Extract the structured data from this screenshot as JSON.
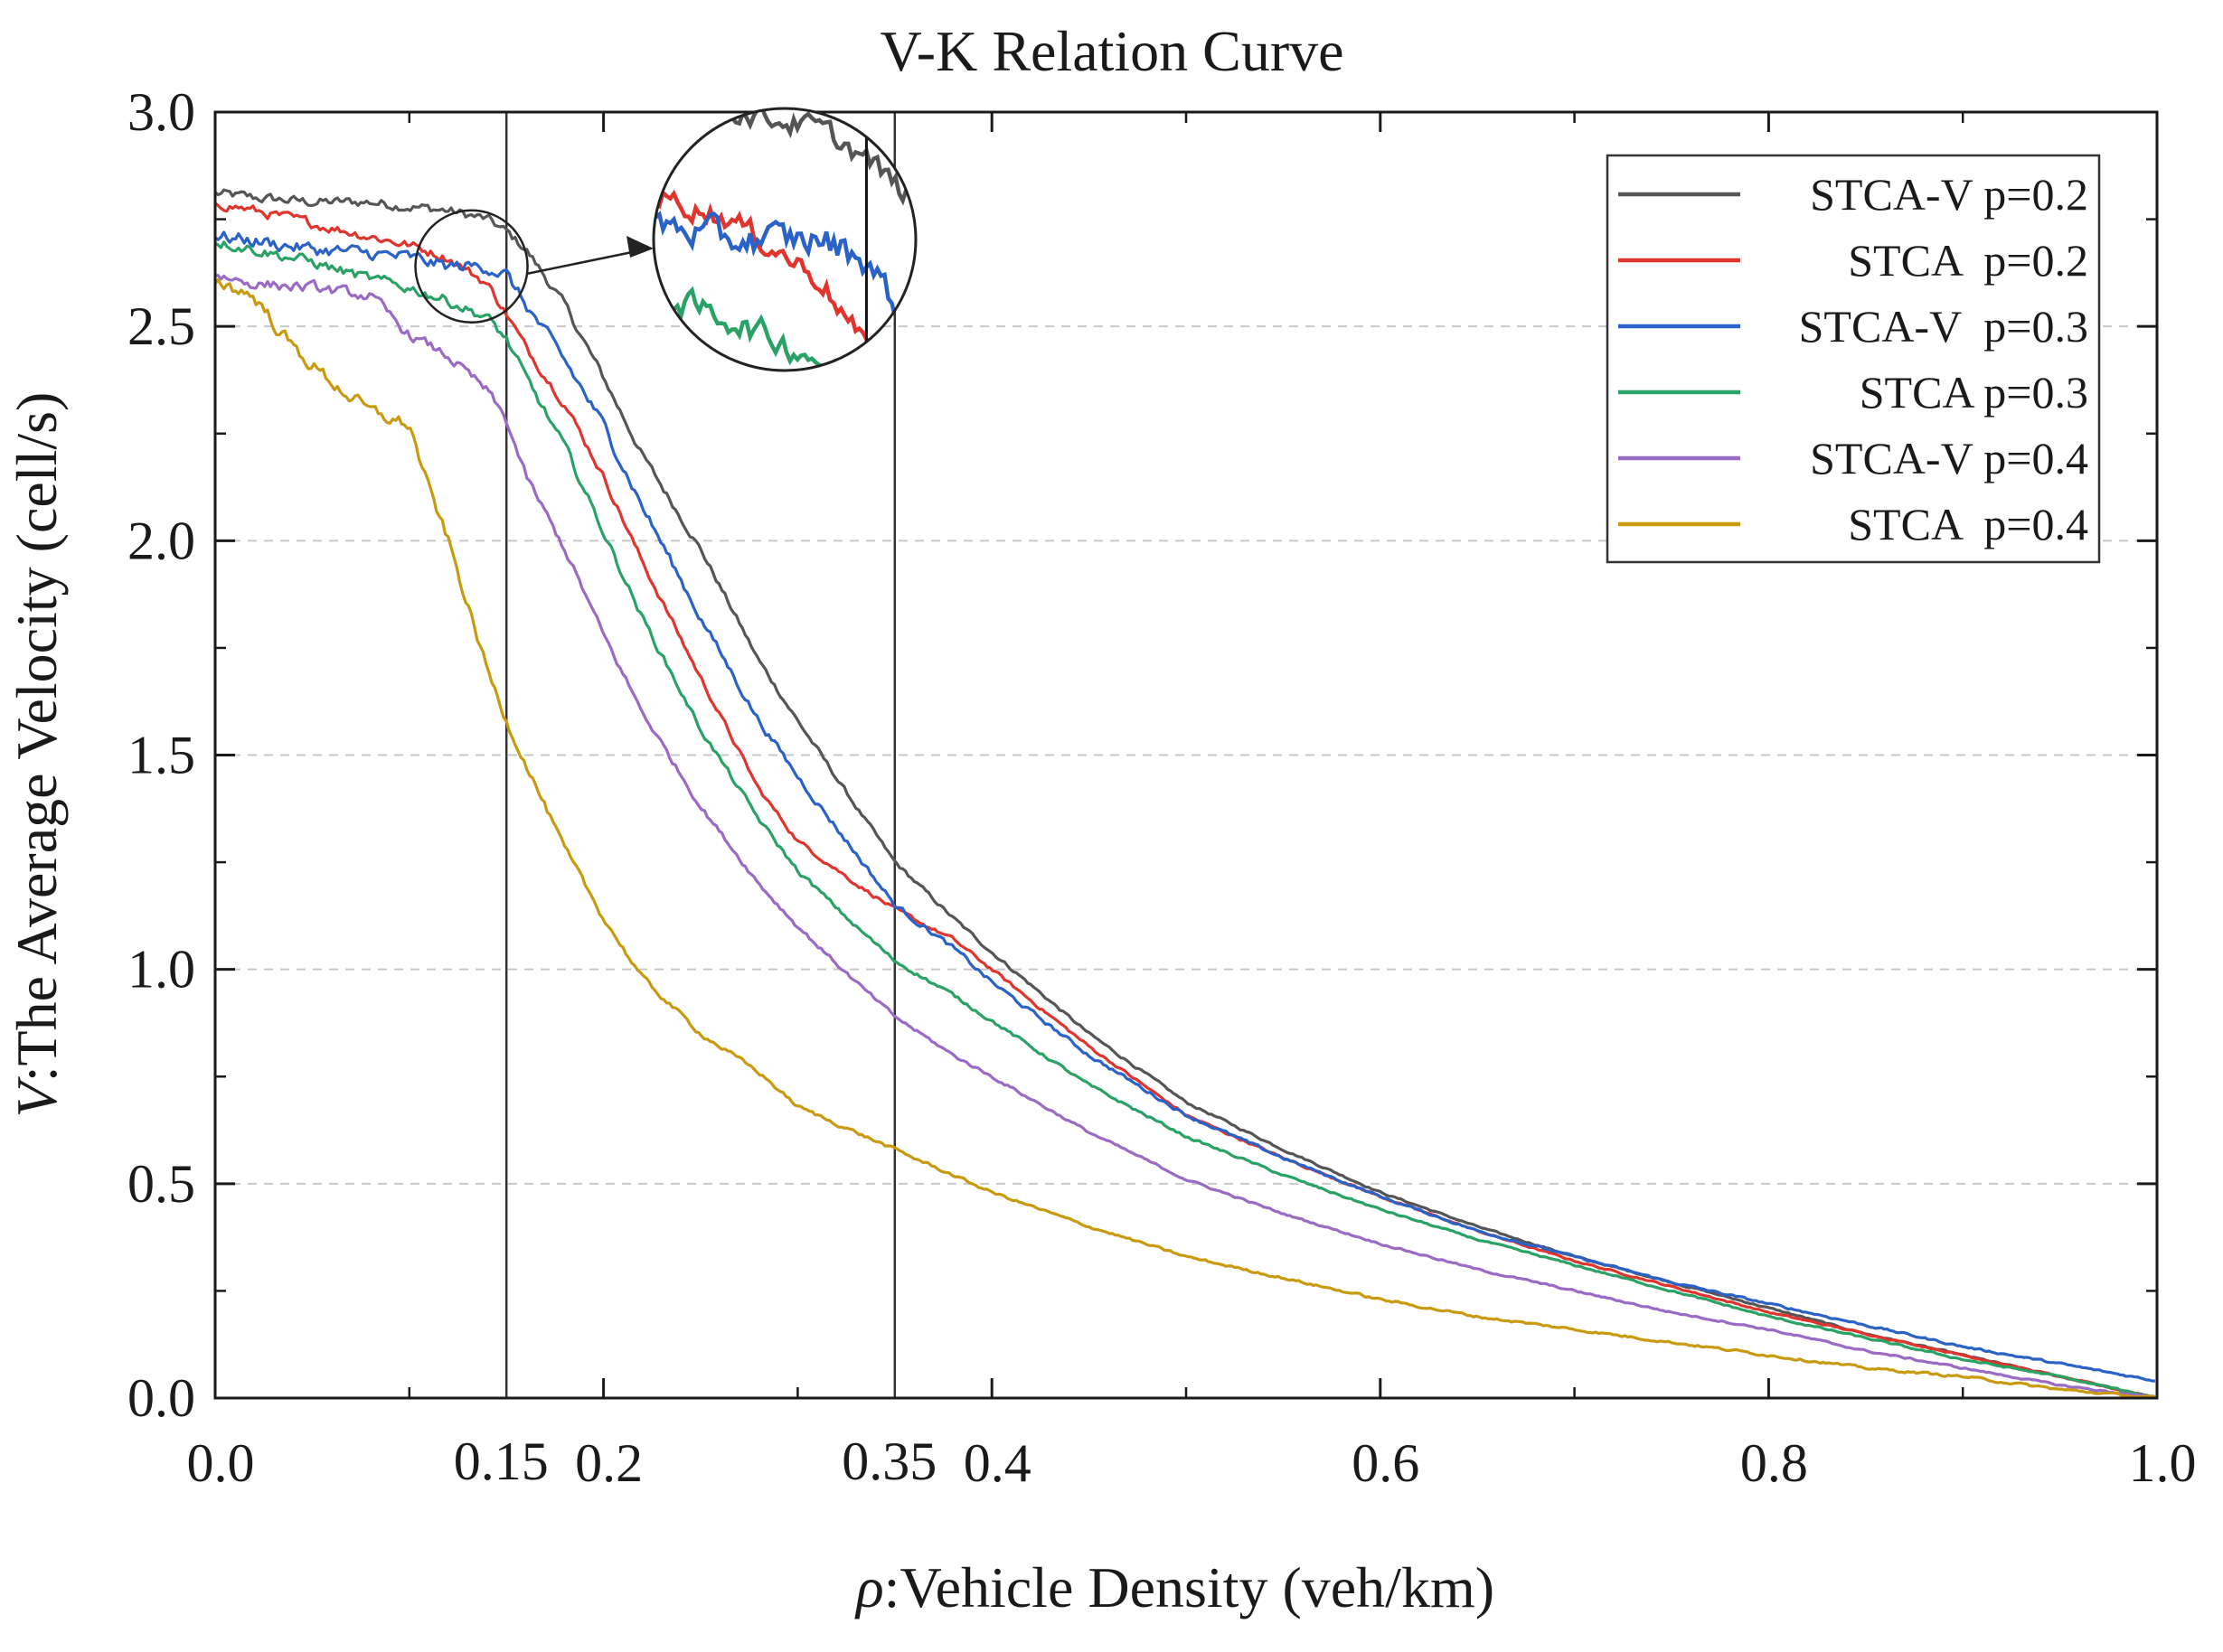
{
  "chart_data": {
    "type": "line",
    "title": "V-K Relation Curve",
    "xlabel_symbol": "ρ",
    "xlabel": ":Vehicle Density (veh/km)",
    "ylabel_symbol": "V",
    "ylabel": ":The Average Velocity (cell/s)",
    "xlim": [
      0.0,
      1.0
    ],
    "ylim": [
      0.0,
      3.0
    ],
    "x_ticks": [
      {
        "value": 0.0,
        "label": "0.0"
      },
      {
        "value": 0.2,
        "label": "0.2"
      },
      {
        "value": 0.4,
        "label": "0.4"
      },
      {
        "value": 0.6,
        "label": "0.6"
      },
      {
        "value": 0.8,
        "label": "0.8"
      },
      {
        "value": 1.0,
        "label": "1.0"
      }
    ],
    "y_ticks": [
      {
        "value": 0.0,
        "label": "0.0"
      },
      {
        "value": 0.5,
        "label": "0.5"
      },
      {
        "value": 1.0,
        "label": "1.0"
      },
      {
        "value": 1.5,
        "label": "1.5"
      },
      {
        "value": 2.0,
        "label": "2.0"
      },
      {
        "value": 2.5,
        "label": "2.5"
      },
      {
        "value": 3.0,
        "label": "3.0"
      }
    ],
    "grid": "horizontal dashed",
    "legend_position": "top-right",
    "reference_lines": [
      {
        "x": 0.15,
        "label": "0.15"
      },
      {
        "x": 0.35,
        "label": "0.35"
      }
    ],
    "zoom_inset": {
      "center_x": 0.132,
      "center_y": 2.64,
      "radius": 0.028
    },
    "series": [
      {
        "name": "STCA-V p=0.2",
        "color": "#555555",
        "x": [
          0.0,
          0.02,
          0.05,
          0.08,
          0.1,
          0.12,
          0.14,
          0.15,
          0.16,
          0.18,
          0.2,
          0.22,
          0.25,
          0.28,
          0.3,
          0.33,
          0.35,
          0.38,
          0.4,
          0.45,
          0.5,
          0.55,
          0.6,
          0.65,
          0.7,
          0.75,
          0.8,
          0.85,
          0.9,
          0.95,
          1.0
        ],
        "y": [
          2.81,
          2.8,
          2.79,
          2.79,
          2.78,
          2.77,
          2.75,
          2.72,
          2.68,
          2.55,
          2.38,
          2.2,
          1.98,
          1.72,
          1.58,
          1.38,
          1.25,
          1.12,
          1.04,
          0.85,
          0.69,
          0.58,
          0.48,
          0.4,
          0.33,
          0.27,
          0.21,
          0.15,
          0.1,
          0.05,
          0.0
        ],
        "jitter": 0.022
      },
      {
        "name": "STCA  p=0.2",
        "color": "#e0342c",
        "x": [
          0.0,
          0.02,
          0.05,
          0.08,
          0.1,
          0.12,
          0.14,
          0.15,
          0.16,
          0.18,
          0.2,
          0.22,
          0.25,
          0.28,
          0.3,
          0.33,
          0.35,
          0.38,
          0.4,
          0.45,
          0.5,
          0.55,
          0.6,
          0.65,
          0.7,
          0.75,
          0.8,
          0.85,
          0.9,
          0.95,
          1.0
        ],
        "y": [
          2.79,
          2.77,
          2.74,
          2.71,
          2.69,
          2.66,
          2.6,
          2.53,
          2.45,
          2.32,
          2.15,
          1.95,
          1.68,
          1.42,
          1.3,
          1.2,
          1.14,
          1.07,
          1.0,
          0.82,
          0.66,
          0.56,
          0.47,
          0.39,
          0.32,
          0.26,
          0.2,
          0.15,
          0.1,
          0.05,
          0.0
        ],
        "jitter": 0.022
      },
      {
        "name": "STCA-V  p=0.3",
        "color": "#2a62c8",
        "x": [
          0.0,
          0.02,
          0.05,
          0.08,
          0.1,
          0.12,
          0.14,
          0.15,
          0.16,
          0.18,
          0.2,
          0.22,
          0.25,
          0.28,
          0.3,
          0.33,
          0.35,
          0.38,
          0.4,
          0.45,
          0.5,
          0.55,
          0.6,
          0.65,
          0.7,
          0.75,
          0.8,
          0.85,
          0.9,
          0.95,
          1.0
        ],
        "y": [
          2.71,
          2.7,
          2.68,
          2.67,
          2.66,
          2.64,
          2.64,
          2.62,
          2.55,
          2.42,
          2.27,
          2.08,
          1.82,
          1.58,
          1.45,
          1.27,
          1.15,
          1.05,
          0.97,
          0.8,
          0.66,
          0.56,
          0.47,
          0.39,
          0.33,
          0.27,
          0.22,
          0.17,
          0.12,
          0.08,
          0.04
        ],
        "jitter": 0.03
      },
      {
        "name": "STCA p=0.3",
        "color": "#2aa265",
        "x": [
          0.0,
          0.02,
          0.05,
          0.08,
          0.1,
          0.12,
          0.14,
          0.15,
          0.16,
          0.18,
          0.2,
          0.22,
          0.25,
          0.28,
          0.3,
          0.33,
          0.35,
          0.38,
          0.4,
          0.45,
          0.5,
          0.55,
          0.6,
          0.65,
          0.7,
          0.75,
          0.8,
          0.85,
          0.9,
          0.95,
          1.0
        ],
        "y": [
          2.7,
          2.68,
          2.65,
          2.61,
          2.59,
          2.56,
          2.52,
          2.47,
          2.38,
          2.22,
          2.02,
          1.82,
          1.56,
          1.35,
          1.23,
          1.1,
          1.02,
          0.94,
          0.88,
          0.73,
          0.61,
          0.52,
          0.44,
          0.37,
          0.31,
          0.25,
          0.19,
          0.14,
          0.09,
          0.05,
          0.0
        ],
        "jitter": 0.025
      },
      {
        "name": "STCA-V p=0.4",
        "color": "#9b6ac4",
        "x": [
          0.0,
          0.02,
          0.05,
          0.08,
          0.1,
          0.12,
          0.14,
          0.15,
          0.16,
          0.18,
          0.2,
          0.22,
          0.25,
          0.28,
          0.3,
          0.33,
          0.35,
          0.38,
          0.4,
          0.45,
          0.5,
          0.55,
          0.6,
          0.65,
          0.7,
          0.75,
          0.8,
          0.85,
          0.9,
          0.95,
          1.0
        ],
        "y": [
          2.62,
          2.6,
          2.59,
          2.57,
          2.48,
          2.43,
          2.35,
          2.28,
          2.15,
          1.98,
          1.78,
          1.6,
          1.38,
          1.2,
          1.1,
          0.97,
          0.89,
          0.8,
          0.75,
          0.62,
          0.51,
          0.43,
          0.36,
          0.3,
          0.25,
          0.2,
          0.16,
          0.11,
          0.07,
          0.03,
          0.0
        ],
        "jitter": 0.025
      },
      {
        "name": "STCA  p=0.4",
        "color": "#c99a10",
        "x": [
          0.0,
          0.02,
          0.04,
          0.06,
          0.08,
          0.1,
          0.11,
          0.12,
          0.13,
          0.14,
          0.15,
          0.16,
          0.17,
          0.18,
          0.2,
          0.22,
          0.25,
          0.28,
          0.3,
          0.33,
          0.35,
          0.38,
          0.4,
          0.45,
          0.5,
          0.55,
          0.6,
          0.65,
          0.7,
          0.75,
          0.8,
          0.85,
          0.9,
          0.95,
          1.0
        ],
        "y": [
          2.61,
          2.57,
          2.45,
          2.37,
          2.3,
          2.27,
          2.12,
          2.0,
          1.85,
          1.7,
          1.58,
          1.48,
          1.38,
          1.28,
          1.12,
          0.98,
          0.85,
          0.76,
          0.68,
          0.62,
          0.58,
          0.52,
          0.48,
          0.4,
          0.33,
          0.28,
          0.23,
          0.19,
          0.16,
          0.13,
          0.1,
          0.07,
          0.05,
          0.02,
          0.0
        ],
        "jitter": 0.035
      }
    ]
  }
}
